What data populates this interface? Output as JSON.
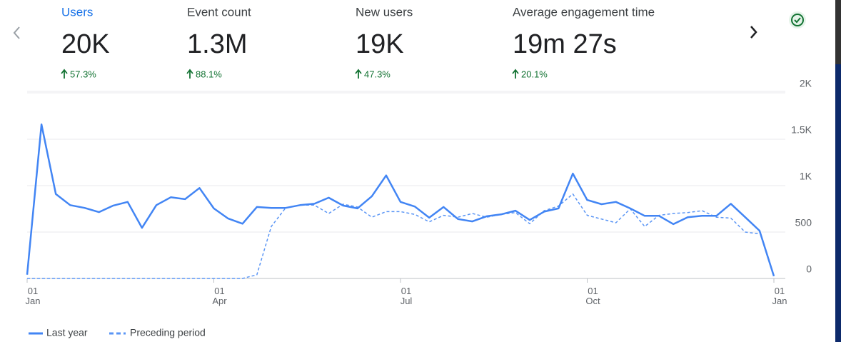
{
  "metrics": [
    {
      "label": "Users",
      "value": "20K",
      "change": "57.3%"
    },
    {
      "label": "Event count",
      "value": "1.3M",
      "change": "88.1%"
    },
    {
      "label": "New users",
      "value": "19K",
      "change": "47.3%"
    },
    {
      "label": "Average engagement time",
      "value": "19m 27s",
      "change": "20.1%"
    }
  ],
  "chart_data": {
    "type": "line",
    "categories": [
      "01\nJan",
      null,
      null,
      null,
      null,
      null,
      null,
      null,
      null,
      null,
      null,
      null,
      null,
      "01\nApr",
      null,
      null,
      null,
      null,
      null,
      null,
      null,
      null,
      null,
      null,
      null,
      null,
      "01\nJul",
      null,
      null,
      null,
      null,
      null,
      null,
      null,
      null,
      null,
      null,
      null,
      null,
      "01\nOct",
      null,
      null,
      null,
      null,
      null,
      null,
      null,
      null,
      null,
      null,
      null,
      null,
      "01\nJan"
    ],
    "series": [
      {
        "name": "Last year",
        "color": "#4285f4",
        "dashed": false,
        "values": [
          40,
          1660,
          910,
          790,
          760,
          715,
          785,
          825,
          545,
          790,
          875,
          855,
          975,
          755,
          645,
          590,
          770,
          760,
          760,
          790,
          805,
          870,
          785,
          755,
          885,
          1110,
          825,
          775,
          655,
          770,
          640,
          615,
          670,
          690,
          730,
          630,
          720,
          755,
          1130,
          845,
          800,
          825,
          755,
          675,
          675,
          585,
          660,
          675,
          675,
          805,
          660,
          515,
          25
        ]
      },
      {
        "name": "Preceding period",
        "color": "#5a95f5",
        "dashed": true,
        "values": [
          0,
          0,
          0,
          0,
          0,
          0,
          0,
          0,
          0,
          0,
          0,
          0,
          0,
          0,
          0,
          0,
          40,
          560,
          760,
          790,
          790,
          700,
          800,
          770,
          660,
          720,
          720,
          690,
          610,
          680,
          660,
          700,
          660,
          690,
          710,
          590,
          730,
          780,
          910,
          680,
          640,
          600,
          750,
          560,
          680,
          700,
          710,
          730,
          660,
          650,
          500,
          480,
          null
        ]
      }
    ],
    "ylim": [
      0,
      2000
    ],
    "yticks": [
      0,
      500,
      {
        "value": 1000,
        "label": "1K"
      },
      {
        "value": 1500,
        "label": "1.5K"
      },
      {
        "value": 2000,
        "label": "2K"
      }
    ],
    "grid": true
  }
}
